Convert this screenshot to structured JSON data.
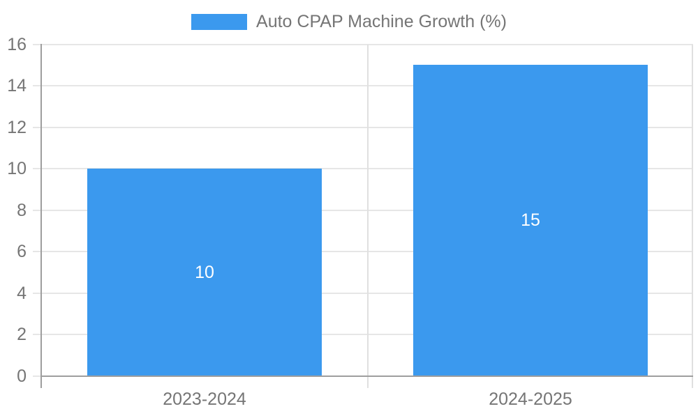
{
  "legend": {
    "label": "Auto CPAP Machine Growth (%)"
  },
  "chart_data": {
    "type": "bar",
    "title": "Auto CPAP Machine Growth (%)",
    "series_name": "Auto CPAP Machine Growth (%)",
    "categories": [
      "2023-2024",
      "2024-2025"
    ],
    "values": [
      10,
      15
    ],
    "bar_value_labels": [
      "10",
      "15"
    ],
    "xlabel": "",
    "ylabel": "",
    "ylim": [
      0,
      16
    ],
    "yticks": [
      0,
      2,
      4,
      6,
      8,
      10,
      12,
      14,
      16
    ],
    "grid": true,
    "legend_position": "top",
    "colors": {
      "bar": "#3B99EE",
      "bar_label": "#FFFFFF",
      "axis_text": "#757575",
      "gridline": "#E6E6E6",
      "divider": "#E0E0E0",
      "axis_line": "#9E9E9E",
      "background": "#FFFFFF"
    }
  }
}
